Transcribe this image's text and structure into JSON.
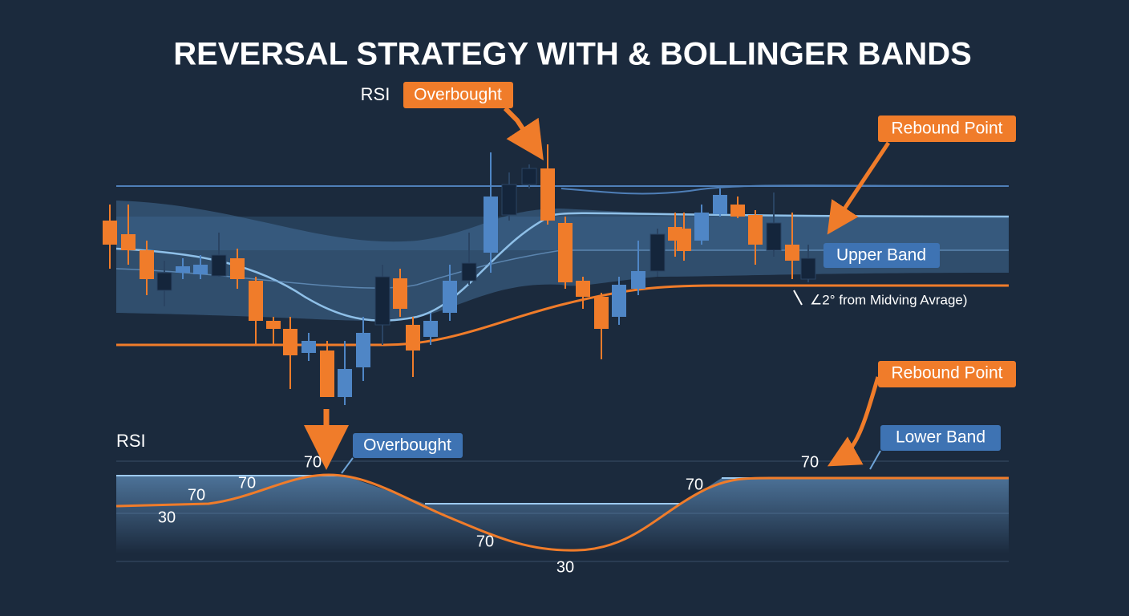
{
  "title": "REVERSAL STRATEGY WITH & BOLLINGER BANDS",
  "price_panel": {
    "label": "RSI",
    "callouts": [
      "Overbought",
      "Rebound Point",
      "Upper Band"
    ],
    "note": "∠2° from Midving Avrage)"
  },
  "rsi_panel": {
    "label": "RSI",
    "callouts": [
      "Rebound Point",
      "Overbought",
      "Lower Band"
    ],
    "level_labels": [
      70,
      70,
      70,
      30,
      70,
      30,
      70,
      70
    ]
  }
}
